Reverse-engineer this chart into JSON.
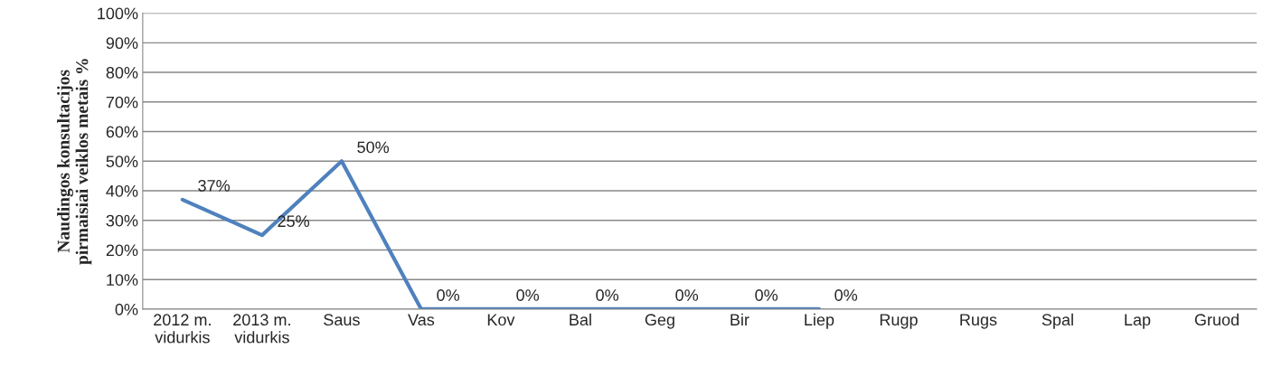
{
  "chart_data": {
    "type": "line",
    "ylabel": "Naudingos konsultacijos\npirmaisiai veiklos metais %",
    "categories": [
      "2012 m.\nvidurkis",
      "2013 m.\nvidurkis",
      "Saus",
      "Vas",
      "Kov",
      "Bal",
      "Geg",
      "Bir",
      "Liep",
      "Rugp",
      "Rugs",
      "Spal",
      "Lap",
      "Gruod"
    ],
    "series": [
      {
        "color": "#4f81bd",
        "values": [
          37,
          25,
          50,
          0,
          0,
          0,
          0,
          0,
          0,
          null,
          null,
          null,
          null,
          null
        ],
        "value_labels": [
          "37%",
          "25%",
          "50%",
          "0%",
          "0%",
          "0%",
          "0%",
          "0%",
          "0%",
          null,
          null,
          null,
          null,
          null
        ]
      }
    ],
    "ylim": [
      0,
      100
    ],
    "yticks": [
      {
        "value": 0,
        "label": "0%"
      },
      {
        "value": 10,
        "label": "10%"
      },
      {
        "value": 20,
        "label": "20%"
      },
      {
        "value": 30,
        "label": "30%"
      },
      {
        "value": 40,
        "label": "40%"
      },
      {
        "value": 50,
        "label": "50%"
      },
      {
        "value": 60,
        "label": "60%"
      },
      {
        "value": 70,
        "label": "70%"
      },
      {
        "value": 80,
        "label": "80%"
      },
      {
        "value": 90,
        "label": "90%"
      },
      {
        "value": 100,
        "label": "100%"
      }
    ],
    "grid": "y",
    "marker": "none",
    "line_style": "solid"
  }
}
